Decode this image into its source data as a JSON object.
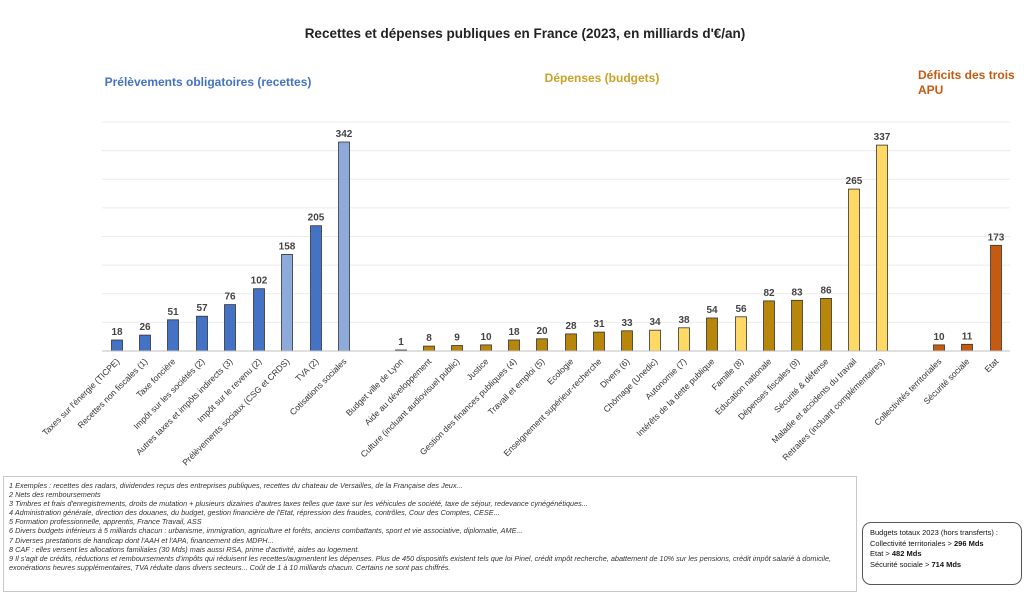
{
  "chart_data": {
    "type": "bar",
    "title": "Recettes et dépenses publiques en France (2023, en milliards d'€/an)",
    "ylim": [
      0,
      342
    ],
    "groups": [
      {
        "name": "Prélèvements obligatoires (recettes)",
        "color": "#4472c4",
        "items": [
          {
            "label": "Taxes sur l'énergie (TICPE)",
            "value": 18,
            "color": "#4472c4"
          },
          {
            "label": "Recettes non fiscales (1)",
            "value": 26,
            "color": "#4472c4"
          },
          {
            "label": "Taxe foncière",
            "value": 51,
            "color": "#4472c4"
          },
          {
            "label": "Impôt sur les sociétés (2)",
            "value": 57,
            "color": "#4472c4"
          },
          {
            "label": "Autres taxes et impôts indirects (3)",
            "value": 76,
            "color": "#4472c4"
          },
          {
            "label": "Impôt sur le revenu (2)",
            "value": 102,
            "color": "#4472c4"
          },
          {
            "label": "Prélèvements sociaux (CSG et CRDS)",
            "value": 158,
            "color": "#8eaadb"
          },
          {
            "label": "TVA (2)",
            "value": 205,
            "color": "#4472c4"
          },
          {
            "label": "Cotisations sociales",
            "value": 342,
            "color": "#8eaadb"
          }
        ]
      },
      {
        "name": "Dépenses (budgets)",
        "color": "#c9a227",
        "items": [
          {
            "label": "Budget ville de Lyon",
            "value": 1,
            "color": "#b8860b"
          },
          {
            "label": "Aide au développement",
            "value": 8,
            "color": "#b8860b"
          },
          {
            "label": "Culture (incluant audiovisuel public)",
            "value": 9,
            "color": "#b8860b"
          },
          {
            "label": "Justice",
            "value": 10,
            "color": "#b8860b"
          },
          {
            "label": "Gestion des finances publiques (4)",
            "value": 18,
            "color": "#b8860b"
          },
          {
            "label": "Travail et emploi (5)",
            "value": 20,
            "color": "#b8860b"
          },
          {
            "label": "Ecologie",
            "value": 28,
            "color": "#b8860b"
          },
          {
            "label": "Enseignement supérieur-recherche",
            "value": 31,
            "color": "#b8860b"
          },
          {
            "label": "Divers (6)",
            "value": 33,
            "color": "#b8860b"
          },
          {
            "label": "Chômage (Unedic)",
            "value": 34,
            "color": "#ffd966"
          },
          {
            "label": "Autonomie (7)",
            "value": 38,
            "color": "#ffd966"
          },
          {
            "label": "Intérêts de la dette publique",
            "value": 54,
            "color": "#b8860b"
          },
          {
            "label": "Famille (8)",
            "value": 56,
            "color": "#ffd966"
          },
          {
            "label": "Education nationale",
            "value": 82,
            "color": "#b8860b"
          },
          {
            "label": "Dépenses fiscales (9)",
            "value": 83,
            "color": "#b8860b"
          },
          {
            "label": "Sécurité & défense",
            "value": 86,
            "color": "#b8860b"
          },
          {
            "label": "Maladie et accidents du travail",
            "value": 265,
            "color": "#ffd966"
          },
          {
            "label": "Retraites (incluant complémentaires)",
            "value": 337,
            "color": "#ffd966"
          }
        ]
      },
      {
        "name": "Déficits des trois APU",
        "color": "#c55a11",
        "items": [
          {
            "label": "Collectivités territoriales",
            "value": 10,
            "color": "#c55a11"
          },
          {
            "label": "Sécurité sociale",
            "value": 11,
            "color": "#c55a11"
          },
          {
            "label": "Etat",
            "value": 173,
            "color": "#c55a11"
          }
        ]
      }
    ]
  },
  "group_labels": {
    "recettes": "Prélèvements obligatoires (recettes)",
    "depenses": "Dépenses (budgets)",
    "deficits_line1": "Déficits des trois",
    "deficits_line2": "APU"
  },
  "notes": [
    "1 Exemples : recettes des radars, dividendes reçus des entreprises publiques, recettes du chateau de Versailles, de la Française des Jeux...",
    "2 Nets des remboursements",
    "3 Timbres et frais d'enregistrements, droits de mutation + plusieurs dizaines d'autres taxes telles que taxe sur les véhicules de société, taxe de séjour, redevance cynégénétiques...",
    "4 Administration générale, direction des douanes, du budget, gestion financière de l'Etat, répression des fraudes, contrôles, Cour des Comptes, CESE...",
    "5 Formation professionnelle, apprentis, France Travail, ASS",
    "6 Divers budgets inférieurs à 5 milliards chacun : urbanisme, immigration, agriculture et forêts, anciens combattants, sport et vie associative, diplomatie, AME...",
    "7 Diverses prestations de handicap dont l'AAH et l'APA, financement des MDPH...",
    "8 CAF : elles versent les allocations familiales (30 Mds) mais aussi RSA, prime d'activité, aides au logement.",
    "9 Il s'agit de crédits, réductions et remboursements d'impôts qui réduisent les recettes/augmentent les dépenses. Plus de 450 dispositifs existent tels que loi Pinel, crédit impôt recherche, abattement de 10% sur les pensions, crédit impôt salarié à domicile, exonérations heures supplémentaires, TVA réduite dans divers secteurs... Coût de 1 à 10 milliards chacun. Certains ne sont pas chiffrés."
  ],
  "totals": {
    "title": "Budgets totaux 2023 (hors transferts) :",
    "rows": [
      {
        "label": "Collectivité territoriales > ",
        "value": "296 Mds"
      },
      {
        "label": "Etat > ",
        "value": "482 Mds"
      },
      {
        "label": "Sécurité sociale > ",
        "value": "714 Mds"
      }
    ]
  }
}
